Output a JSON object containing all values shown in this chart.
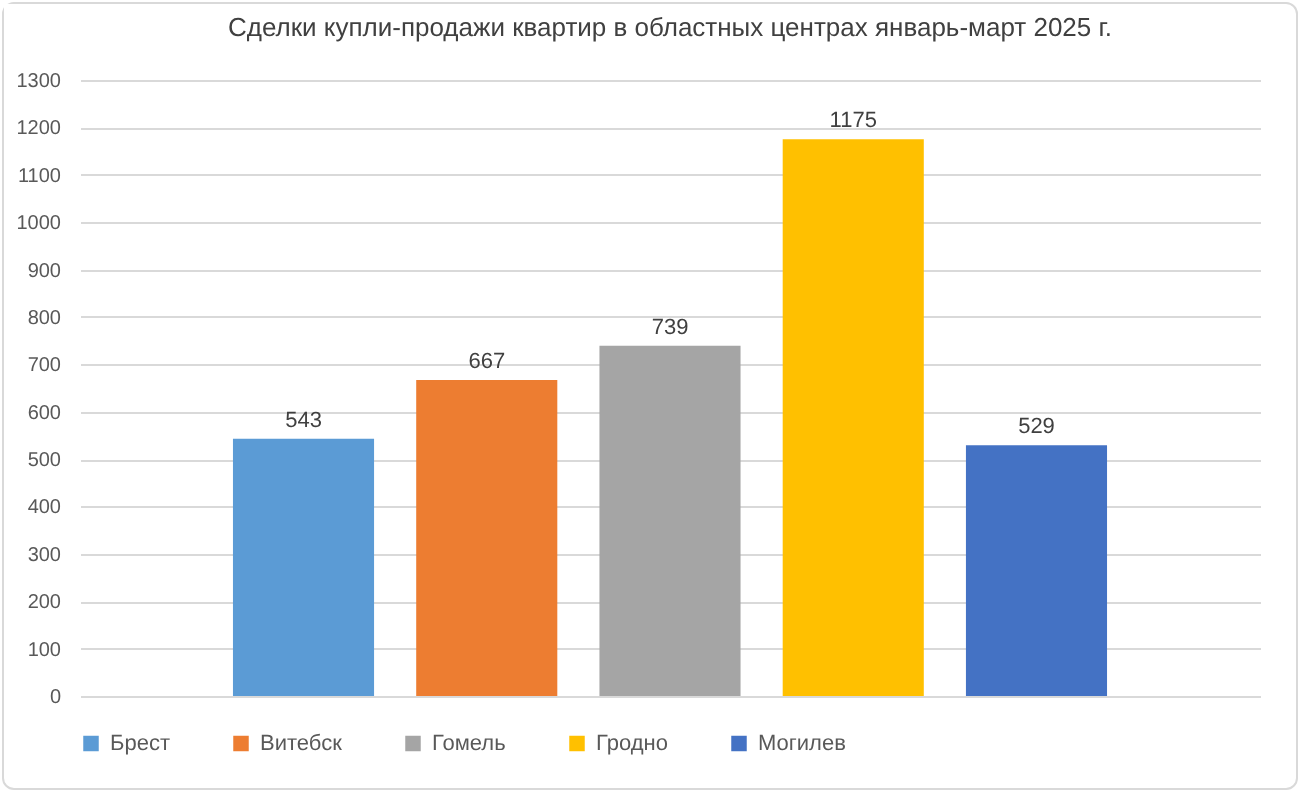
{
  "chart_data": {
    "type": "bar",
    "title": "Сделки купли-продажи квартир в областных центрах январь-март 2025 г.",
    "categories": [
      null
    ],
    "series": [
      {
        "name": "Брест",
        "color": "#5b9bd5",
        "values": [
          543
        ]
      },
      {
        "name": "Витебск",
        "color": "#ed7d31",
        "values": [
          667
        ]
      },
      {
        "name": "Гомель",
        "color": "#a5a5a5",
        "values": [
          739
        ]
      },
      {
        "name": "Гродно",
        "color": "#ffc000",
        "values": [
          1175
        ]
      },
      {
        "name": "Могилев",
        "color": "#4472c4",
        "values": [
          529
        ]
      }
    ],
    "ylim": [
      0,
      1300
    ],
    "yticks": [
      0,
      100,
      200,
      300,
      400,
      500,
      600,
      700,
      800,
      900,
      1000,
      1100,
      1200,
      1300
    ],
    "grid": "y",
    "legend": "bottom",
    "data_labels": true,
    "tick_labels": "y"
  }
}
